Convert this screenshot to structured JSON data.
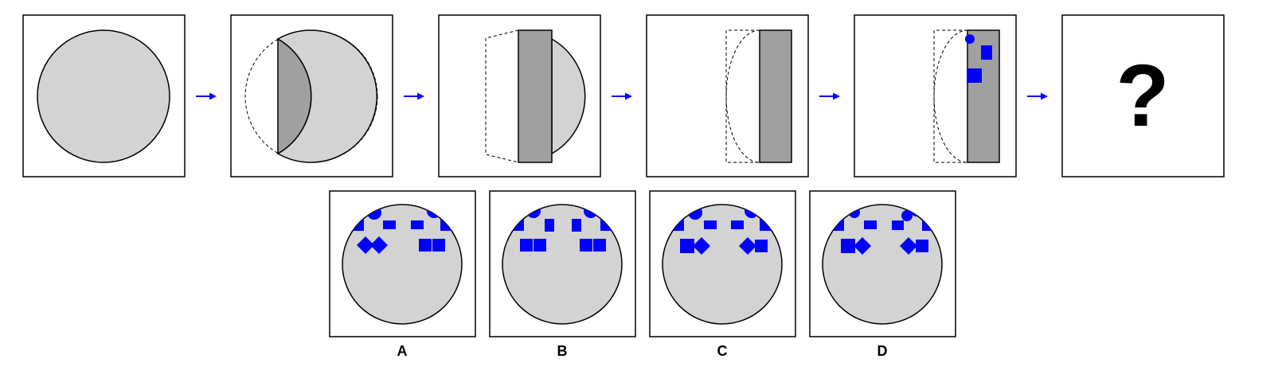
{
  "sequence": {
    "question_mark": "?"
  },
  "options": [
    {
      "label": "A"
    },
    {
      "label": "B"
    },
    {
      "label": "C"
    },
    {
      "label": "D"
    }
  ],
  "colors": {
    "paper": "#d3d3d3",
    "folded": "#a0a0a0",
    "hole": "#0000ff",
    "arrow": "#0000ff",
    "border": "#000000"
  }
}
